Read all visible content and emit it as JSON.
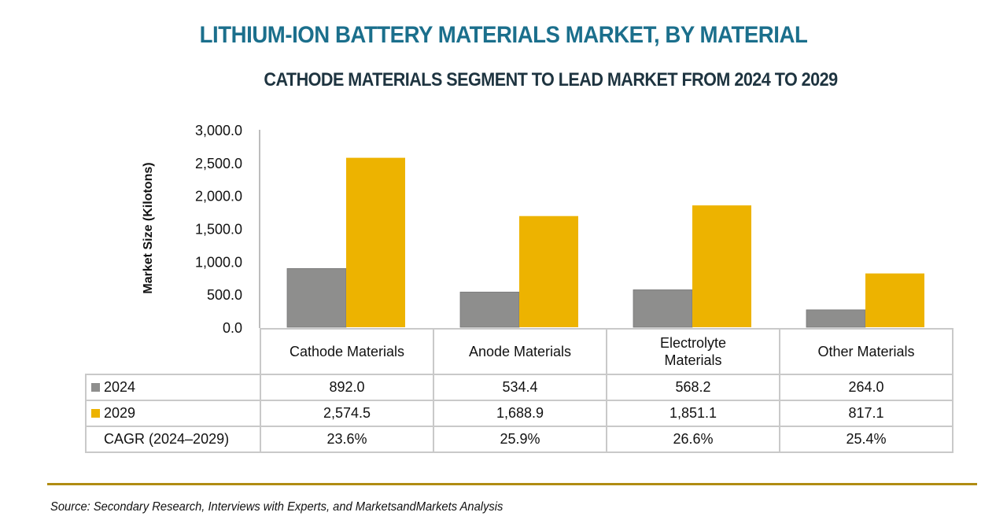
{
  "header": {
    "title": "LITHIUM-ION BATTERY MATERIALS MARKET, BY MATERIAL",
    "subtitle": "CATHODE MATERIALS SEGMENT TO LEAD MARKET FROM 2024 TO 2029"
  },
  "colors": {
    "title": "#1b6f8c",
    "series_2024": "#8e8e8d",
    "series_2029": "#edb300",
    "rule": "#b08c12"
  },
  "chart_data": {
    "type": "bar",
    "title": "LITHIUM-ION BATTERY MATERIALS MARKET, BY MATERIAL",
    "subtitle": "CATHODE MATERIALS SEGMENT TO LEAD MARKET FROM 2024 TO 2029",
    "xlabel": "",
    "ylabel": "Market Size (Kilotons)",
    "ylim": [
      0,
      3000
    ],
    "yticks": [
      "0.0",
      "500.0",
      "1,000.0",
      "1,500.0",
      "2,000.0",
      "2,500.0",
      "3,000.0"
    ],
    "ytick_values": [
      0,
      500,
      1000,
      1500,
      2000,
      2500,
      3000
    ],
    "grid": false,
    "legend": "data-table-left",
    "categories": [
      "Cathode Materials",
      "Anode Materials",
      "Electrolyte Materials",
      "Other Materials"
    ],
    "category_lines": [
      [
        "Cathode Materials"
      ],
      [
        "Anode Materials"
      ],
      [
        "Electrolyte",
        "Materials"
      ],
      [
        "Other Materials"
      ]
    ],
    "series": [
      {
        "name": "2024",
        "values": [
          892.0,
          534.4,
          568.2,
          264.0
        ],
        "labels": [
          "892.0",
          "534.4",
          "568.2",
          "264.0"
        ]
      },
      {
        "name": "2029",
        "values": [
          2574.5,
          1688.9,
          1851.1,
          817.1
        ],
        "labels": [
          "2,574.5",
          "1,688.9",
          "1,851.1",
          "817.1"
        ]
      }
    ],
    "cagr": {
      "label": "CAGR (2024–2029)",
      "values": [
        "23.6%",
        "25.9%",
        "26.6%",
        "25.4%"
      ]
    }
  },
  "footer": {
    "source": "Source: Secondary Research, Interviews with Experts, and MarketsandMarkets Analysis"
  }
}
